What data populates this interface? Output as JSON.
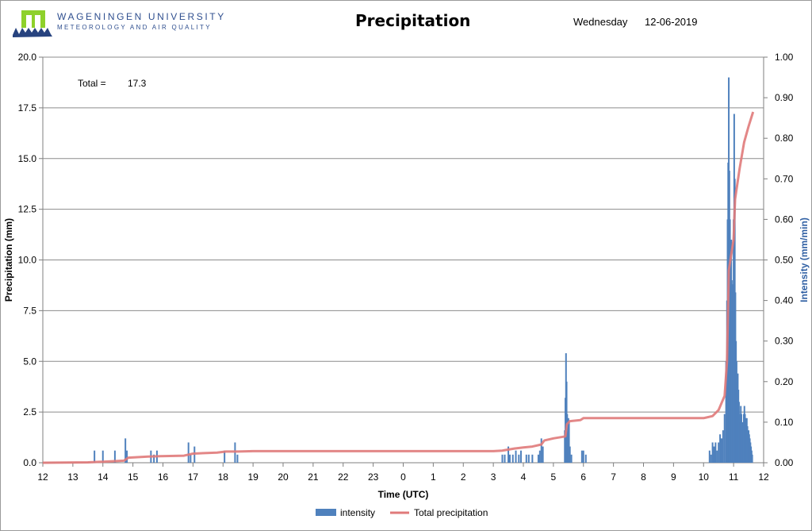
{
  "header": {
    "university_line1": "WAGENINGEN UNIVERSITY",
    "university_line2": "METEOROLOGY AND AIR QUALITY",
    "title": "Precipitation",
    "day": "Wednesday",
    "date": "12-06-2019"
  },
  "logo": {
    "icon": "wageningen-university-logo",
    "colors": {
      "green": "#8ed12b",
      "blue": "#27437f"
    }
  },
  "total": {
    "label": "Total =",
    "value": "17.3"
  },
  "colors": {
    "intensity": "#4f81bd",
    "total": "#e07a7a",
    "grid": "#8c8c8c",
    "y2_title": "#2f5fa3"
  },
  "chart_data": {
    "type": "bar+line",
    "xlabel": "Time (UTC)",
    "ylabel": "Precipitation (mm)",
    "y2label": "Intensity (mm/min)",
    "ylim": [
      0,
      20
    ],
    "y2lim": [
      0,
      1
    ],
    "yticks": [
      "0.0",
      "2.5",
      "5.0",
      "7.5",
      "10.0",
      "12.5",
      "15.0",
      "17.5",
      "20.0"
    ],
    "y2ticks": [
      "0.00",
      "0.10",
      "0.20",
      "0.30",
      "0.40",
      "0.50",
      "0.60",
      "0.70",
      "0.80",
      "0.90",
      "1.00"
    ],
    "xticks": [
      "12",
      "13",
      "14",
      "15",
      "16",
      "17",
      "18",
      "19",
      "20",
      "21",
      "22",
      "23",
      "0",
      "1",
      "2",
      "3",
      "4",
      "5",
      "6",
      "7",
      "8",
      "9",
      "10",
      "11",
      "12"
    ],
    "grid": "horizontal",
    "legend_position": "bottom",
    "series": [
      {
        "name": "intensity",
        "kind": "bar",
        "axis": "y2",
        "points": [
          [
            1.72,
            0.03
          ],
          [
            2.0,
            0.03
          ],
          [
            2.4,
            0.03
          ],
          [
            2.75,
            0.06
          ],
          [
            2.8,
            0.03
          ],
          [
            3.6,
            0.03
          ],
          [
            3.7,
            0.02
          ],
          [
            3.8,
            0.03
          ],
          [
            4.85,
            0.05
          ],
          [
            4.92,
            0.02
          ],
          [
            5.05,
            0.04
          ],
          [
            6.05,
            0.03
          ],
          [
            6.4,
            0.05
          ],
          [
            6.48,
            0.02
          ],
          [
            15.3,
            0.02
          ],
          [
            15.38,
            0.02
          ],
          [
            15.5,
            0.04
          ],
          [
            15.55,
            0.02
          ],
          [
            15.65,
            0.02
          ],
          [
            15.75,
            0.03
          ],
          [
            15.85,
            0.02
          ],
          [
            15.92,
            0.03
          ],
          [
            16.1,
            0.02
          ],
          [
            16.18,
            0.02
          ],
          [
            16.3,
            0.02
          ],
          [
            16.5,
            0.02
          ],
          [
            16.55,
            0.03
          ],
          [
            16.6,
            0.06
          ],
          [
            16.65,
            0.04
          ],
          [
            17.38,
            0.08
          ],
          [
            17.4,
            0.16
          ],
          [
            17.42,
            0.27
          ],
          [
            17.44,
            0.2
          ],
          [
            17.46,
            0.12
          ],
          [
            17.48,
            0.08
          ],
          [
            17.5,
            0.11
          ],
          [
            17.52,
            0.1
          ],
          [
            17.55,
            0.04
          ],
          [
            17.6,
            0.02
          ],
          [
            17.95,
            0.03
          ],
          [
            18.0,
            0.03
          ],
          [
            18.08,
            0.02
          ],
          [
            22.2,
            0.03
          ],
          [
            22.25,
            0.02
          ],
          [
            22.3,
            0.05
          ],
          [
            22.35,
            0.04
          ],
          [
            22.4,
            0.05
          ],
          [
            22.45,
            0.03
          ],
          [
            22.5,
            0.05
          ],
          [
            22.55,
            0.07
          ],
          [
            22.6,
            0.06
          ],
          [
            22.65,
            0.08
          ],
          [
            22.7,
            0.12
          ],
          [
            22.75,
            0.25
          ],
          [
            22.78,
            0.4
          ],
          [
            22.8,
            0.6
          ],
          [
            22.82,
            0.74
          ],
          [
            22.84,
            0.95
          ],
          [
            22.86,
            0.72
          ],
          [
            22.88,
            0.6
          ],
          [
            22.9,
            0.5
          ],
          [
            22.92,
            0.55
          ],
          [
            22.94,
            0.45
          ],
          [
            22.96,
            0.44
          ],
          [
            22.98,
            0.42
          ],
          [
            23.0,
            0.6
          ],
          [
            23.02,
            0.86
          ],
          [
            23.04,
            0.7
          ],
          [
            23.06,
            0.42
          ],
          [
            23.08,
            0.3
          ],
          [
            23.1,
            0.25
          ],
          [
            23.12,
            0.2
          ],
          [
            23.14,
            0.22
          ],
          [
            23.16,
            0.18
          ],
          [
            23.18,
            0.15
          ],
          [
            23.2,
            0.12
          ],
          [
            23.22,
            0.1
          ],
          [
            23.24,
            0.14
          ],
          [
            23.26,
            0.12
          ],
          [
            23.28,
            0.1
          ],
          [
            23.3,
            0.08
          ],
          [
            23.32,
            0.1
          ],
          [
            23.34,
            0.12
          ],
          [
            23.36,
            0.14
          ],
          [
            23.38,
            0.12
          ],
          [
            23.4,
            0.11
          ],
          [
            23.42,
            0.1
          ],
          [
            23.44,
            0.11
          ],
          [
            23.46,
            0.09
          ],
          [
            23.48,
            0.07
          ],
          [
            23.5,
            0.08
          ],
          [
            23.52,
            0.07
          ],
          [
            23.54,
            0.06
          ],
          [
            23.56,
            0.05
          ],
          [
            23.58,
            0.04
          ],
          [
            23.6,
            0.03
          ],
          [
            23.62,
            0.02
          ]
        ]
      },
      {
        "name": "Total precipitation",
        "kind": "line",
        "axis": "y",
        "points": [
          [
            0,
            0
          ],
          [
            1.5,
            0.02
          ],
          [
            2.0,
            0.05
          ],
          [
            2.7,
            0.1
          ],
          [
            2.85,
            0.25
          ],
          [
            3.5,
            0.3
          ],
          [
            3.9,
            0.32
          ],
          [
            4.7,
            0.35
          ],
          [
            5.0,
            0.45
          ],
          [
            5.8,
            0.5
          ],
          [
            6.1,
            0.55
          ],
          [
            6.5,
            0.55
          ],
          [
            7.0,
            0.57
          ],
          [
            15.0,
            0.57
          ],
          [
            15.3,
            0.6
          ],
          [
            15.7,
            0.7
          ],
          [
            16.0,
            0.75
          ],
          [
            16.3,
            0.8
          ],
          [
            16.6,
            0.9
          ],
          [
            16.7,
            1.1
          ],
          [
            17.0,
            1.2
          ],
          [
            17.4,
            1.3
          ],
          [
            17.45,
            1.9
          ],
          [
            17.55,
            2.05
          ],
          [
            17.9,
            2.1
          ],
          [
            18.0,
            2.2
          ],
          [
            19.0,
            2.2
          ],
          [
            20.0,
            2.2
          ],
          [
            21.0,
            2.2
          ],
          [
            22.0,
            2.2
          ],
          [
            22.3,
            2.3
          ],
          [
            22.5,
            2.6
          ],
          [
            22.7,
            3.3
          ],
          [
            22.78,
            5.0
          ],
          [
            22.84,
            9.5
          ],
          [
            23.0,
            11.0
          ],
          [
            23.05,
            13.0
          ],
          [
            23.2,
            14.5
          ],
          [
            23.35,
            15.8
          ],
          [
            23.5,
            16.6
          ],
          [
            23.65,
            17.3
          ]
        ]
      }
    ]
  }
}
